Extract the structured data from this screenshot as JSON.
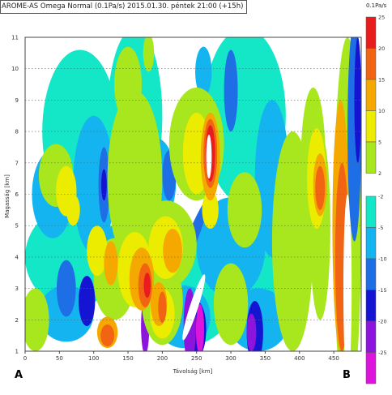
{
  "title": "AROME-AS Omega Normal (0.1Pa/s) 2015.01.30. péntek 21:00 (+15h)",
  "unit_label": "0.1Pa/s",
  "corner_labels": {
    "left": "A",
    "right": "B"
  },
  "colors": {
    "pos": [
      "#a8e61e",
      "#ecec00",
      "#f5a800",
      "#f06414",
      "#e81c1c"
    ],
    "neg": [
      "#14e6c8",
      "#14b4f0",
      "#1e6ee6",
      "#1414d2",
      "#8c14dc",
      "#dc14dc"
    ]
  },
  "chart_data": {
    "type": "heatmap",
    "title": "AROME-AS Omega Normal (0.1Pa/s) 2015.01.30. péntek 21:00 (+15h)",
    "xlabel": "Távolság [km]",
    "ylabel": "Magasság [km]",
    "xlim": [
      0,
      490
    ],
    "ylim": [
      1,
      11
    ],
    "xticks": [
      "0",
      "50",
      "100",
      "150",
      "200",
      "250",
      "300",
      "350",
      "400",
      "450"
    ],
    "yticks": [
      "1",
      "2",
      "3",
      "4",
      "5",
      "6",
      "7",
      "8",
      "9",
      "10",
      "11"
    ],
    "grid": true,
    "colorbar_positive": {
      "levels": [
        "25",
        "20",
        "15",
        "10",
        "5",
        "2"
      ]
    },
    "colorbar_negative": {
      "levels": [
        "-2",
        "-5",
        "-10",
        "-15",
        "-20",
        "-25"
      ]
    }
  }
}
